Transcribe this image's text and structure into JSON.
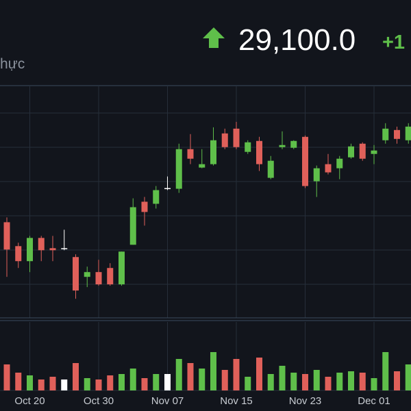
{
  "header": {
    "left_label": "hực",
    "price": "29,100.0",
    "change": "+1"
  },
  "chart_data": {
    "type": "candlestick",
    "categories": [
      null,
      null,
      "Oct 20",
      null,
      null,
      null,
      null,
      null,
      "Oct 30",
      null,
      null,
      null,
      null,
      null,
      "Nov 07",
      null,
      null,
      null,
      null,
      null,
      "Nov 15",
      null,
      null,
      null,
      null,
      null,
      "Nov 23",
      null,
      null,
      null,
      null,
      null,
      "Dec 01",
      null,
      null,
      null
    ],
    "open": [
      27700,
      27350,
      27130,
      27470,
      27320,
      27320,
      27190,
      26900,
      26970,
      27030,
      26790,
      27370,
      28000,
      27970,
      28200,
      28190,
      28770,
      28500,
      28550,
      29000,
      29070,
      28730,
      28890,
      28350,
      28800,
      28790,
      28950,
      28300,
      28550,
      28490,
      28650,
      28850,
      28700,
      28900,
      29050,
      28900
    ],
    "high": [
      27770,
      27400,
      27500,
      27500,
      27500,
      27590,
      27230,
      27050,
      27150,
      27100,
      27270,
      28050,
      28070,
      28230,
      28370,
      28850,
      28990,
      28770,
      29090,
      29070,
      29170,
      28900,
      28950,
      28670,
      29030,
      28900,
      28970,
      28530,
      28700,
      28670,
      28850,
      28870,
      28830,
      29150,
      29100,
      29150
    ],
    "low": [
      26900,
      27030,
      26970,
      27130,
      27130,
      27290,
      26580,
      26750,
      26770,
      26770,
      26770,
      27370,
      27650,
      27900,
      28170,
      28130,
      28550,
      28490,
      28530,
      28770,
      28770,
      28700,
      28450,
      28330,
      28770,
      28770,
      28200,
      28070,
      28400,
      28330,
      28630,
      28600,
      28550,
      28850,
      28850,
      28850
    ],
    "close": [
      27300,
      27130,
      27470,
      27290,
      27290,
      27320,
      26700,
      26970,
      26790,
      26790,
      27270,
      27920,
      27850,
      28170,
      28200,
      28770,
      28630,
      28550,
      28900,
      28800,
      28800,
      28870,
      28550,
      28600,
      28830,
      28890,
      28230,
      28490,
      28430,
      28630,
      28810,
      28630,
      28750,
      29070,
      28920,
      29100
    ],
    "volume": [
      38,
      26,
      22,
      16,
      20,
      16,
      40,
      18,
      16,
      22,
      24,
      32,
      18,
      24,
      24,
      46,
      40,
      32,
      56,
      30,
      46,
      20,
      48,
      24,
      36,
      26,
      24,
      30,
      20,
      26,
      28,
      26,
      18,
      56,
      28,
      38
    ],
    "ylim": [
      26300,
      29700
    ],
    "volume_lim": [
      0,
      100
    ],
    "up_color": "#5fbf4a",
    "down_color": "#e0605a",
    "flat_color": "#ffffff"
  }
}
